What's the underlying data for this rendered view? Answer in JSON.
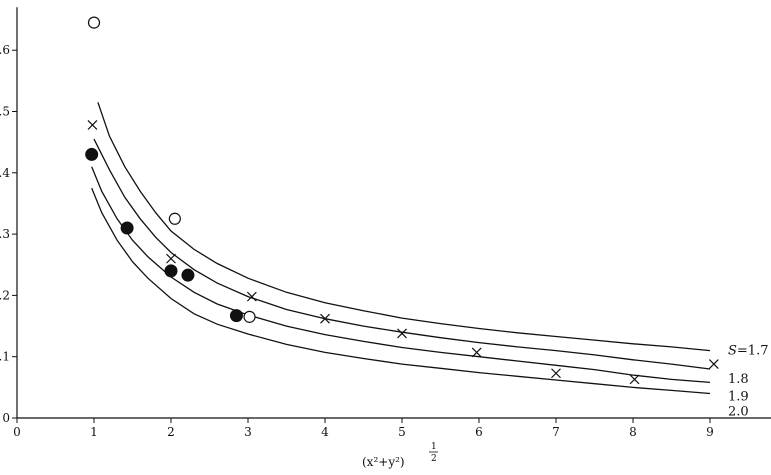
{
  "chart_data": {
    "type": "scatter",
    "title": "",
    "xlabel": "(x²+y²)",
    "xlabel_exponent_num": "1",
    "xlabel_exponent_den": "2",
    "ylabel": "",
    "xlim": [
      0,
      9.5
    ],
    "ylim": [
      0,
      0.67
    ],
    "grid": false,
    "x_ticks": [
      0,
      1,
      2,
      3,
      4,
      5,
      6,
      7,
      8,
      9
    ],
    "x_tick_labels": [
      "0",
      "1",
      "2",
      "3",
      "4",
      "5",
      "6",
      "7",
      "8",
      "9"
    ],
    "y_ticks": [
      0,
      0.1,
      0.2,
      0.3,
      0.4,
      0.5,
      0.6
    ],
    "y_tick_labels": [
      "0",
      ".1",
      ".2",
      ".3",
      ".4",
      ".5",
      ".6"
    ],
    "curves": [
      {
        "label": "S = 1.7",
        "label_prefix": "S",
        "label_value": "=1.7",
        "points": [
          [
            1.05,
            0.515
          ],
          [
            1.2,
            0.46
          ],
          [
            1.4,
            0.41
          ],
          [
            1.6,
            0.37
          ],
          [
            1.8,
            0.335
          ],
          [
            2.0,
            0.305
          ],
          [
            2.3,
            0.275
          ],
          [
            2.6,
            0.252
          ],
          [
            3.0,
            0.228
          ],
          [
            3.5,
            0.205
          ],
          [
            4.0,
            0.188
          ],
          [
            4.5,
            0.175
          ],
          [
            5.0,
            0.163
          ],
          [
            5.5,
            0.154
          ],
          [
            6.0,
            0.146
          ],
          [
            6.5,
            0.139
          ],
          [
            7.0,
            0.133
          ],
          [
            7.5,
            0.127
          ],
          [
            8.0,
            0.121
          ],
          [
            8.5,
            0.116
          ],
          [
            9.0,
            0.11
          ]
        ]
      },
      {
        "label": "1.8",
        "label_prefix": "",
        "label_value": "1.8",
        "points": [
          [
            1.0,
            0.455
          ],
          [
            1.2,
            0.405
          ],
          [
            1.4,
            0.36
          ],
          [
            1.6,
            0.325
          ],
          [
            1.8,
            0.295
          ],
          [
            2.0,
            0.27
          ],
          [
            2.3,
            0.242
          ],
          [
            2.6,
            0.22
          ],
          [
            3.0,
            0.198
          ],
          [
            3.5,
            0.177
          ],
          [
            4.0,
            0.162
          ],
          [
            4.5,
            0.15
          ],
          [
            5.0,
            0.14
          ],
          [
            5.5,
            0.131
          ],
          [
            6.0,
            0.123
          ],
          [
            6.5,
            0.116
          ],
          [
            7.0,
            0.11
          ],
          [
            7.5,
            0.103
          ],
          [
            8.0,
            0.095
          ],
          [
            8.5,
            0.088
          ],
          [
            9.0,
            0.08
          ]
        ]
      },
      {
        "label": "1.9",
        "label_prefix": "",
        "label_value": "1.9",
        "points": [
          [
            0.97,
            0.41
          ],
          [
            1.1,
            0.37
          ],
          [
            1.3,
            0.325
          ],
          [
            1.5,
            0.29
          ],
          [
            1.7,
            0.263
          ],
          [
            2.0,
            0.23
          ],
          [
            2.3,
            0.205
          ],
          [
            2.6,
            0.186
          ],
          [
            3.0,
            0.168
          ],
          [
            3.5,
            0.15
          ],
          [
            4.0,
            0.136
          ],
          [
            4.5,
            0.125
          ],
          [
            5.0,
            0.115
          ],
          [
            5.5,
            0.107
          ],
          [
            6.0,
            0.1
          ],
          [
            6.5,
            0.093
          ],
          [
            7.0,
            0.086
          ],
          [
            7.5,
            0.079
          ],
          [
            8.0,
            0.07
          ],
          [
            8.5,
            0.063
          ],
          [
            9.0,
            0.058
          ]
        ]
      },
      {
        "label": "2.0",
        "label_prefix": "",
        "label_value": "2.0",
        "points": [
          [
            0.97,
            0.375
          ],
          [
            1.1,
            0.335
          ],
          [
            1.3,
            0.29
          ],
          [
            1.5,
            0.255
          ],
          [
            1.7,
            0.228
          ],
          [
            2.0,
            0.195
          ],
          [
            2.3,
            0.17
          ],
          [
            2.6,
            0.153
          ],
          [
            3.0,
            0.137
          ],
          [
            3.5,
            0.12
          ],
          [
            4.0,
            0.107
          ],
          [
            4.5,
            0.097
          ],
          [
            5.0,
            0.088
          ],
          [
            5.5,
            0.081
          ],
          [
            6.0,
            0.074
          ],
          [
            6.5,
            0.068
          ],
          [
            7.0,
            0.062
          ],
          [
            7.5,
            0.056
          ],
          [
            8.0,
            0.05
          ],
          [
            8.5,
            0.045
          ],
          [
            9.0,
            0.04
          ]
        ]
      }
    ],
    "series": [
      {
        "marker": "open-circle",
        "x": [
          1.0,
          2.05,
          3.02
        ],
        "y": [
          0.645,
          0.325,
          0.165
        ]
      },
      {
        "marker": "filled-circle",
        "x": [
          0.97,
          1.43,
          2.0,
          2.22,
          2.85
        ],
        "y": [
          0.43,
          0.31,
          0.24,
          0.233,
          0.167
        ]
      },
      {
        "marker": "cross",
        "x": [
          0.98,
          2.0,
          3.05,
          4.0,
          5.0,
          5.97,
          7.0,
          8.02,
          9.05
        ],
        "y": [
          0.478,
          0.26,
          0.198,
          0.162,
          0.138,
          0.107,
          0.073,
          0.063,
          0.088
        ]
      }
    ]
  }
}
